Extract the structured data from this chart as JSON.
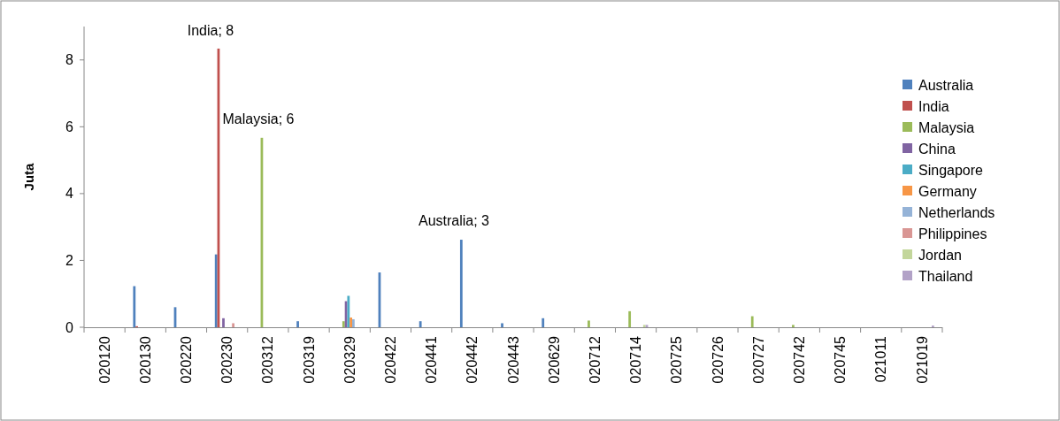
{
  "chart_data": {
    "type": "bar",
    "ylabel": "Juta",
    "categories": [
      "020120",
      "020130",
      "020220",
      "020230",
      "020312",
      "020319",
      "020329",
      "020422",
      "020441",
      "020442",
      "020443",
      "020629",
      "020712",
      "020714",
      "020725",
      "020726",
      "020727",
      "020742",
      "020745",
      "021011",
      "021019"
    ],
    "series": [
      {
        "name": "Australia",
        "color": "#4f81bd",
        "values": [
          0,
          1.23,
          0.6,
          2.18,
          0,
          0.18,
          0,
          1.64,
          0.18,
          2.62,
          0.12,
          0.27,
          0,
          0,
          0,
          0,
          0,
          0,
          0,
          0,
          0
        ]
      },
      {
        "name": "India",
        "color": "#c0504d",
        "values": [
          0,
          0.03,
          0,
          8.34,
          0,
          0,
          0,
          0,
          0,
          0,
          0,
          0,
          0,
          0,
          0,
          0,
          0,
          0,
          0,
          0,
          0
        ]
      },
      {
        "name": "Malaysia",
        "color": "#9bbb59",
        "values": [
          0,
          0,
          0,
          0,
          5.67,
          0,
          0.18,
          0,
          0,
          0,
          0,
          0,
          0.2,
          0.48,
          0,
          0,
          0.33,
          0.07,
          0,
          0,
          0
        ]
      },
      {
        "name": "China",
        "color": "#8064a2",
        "values": [
          0,
          0,
          0,
          0.27,
          0,
          0,
          0.78,
          0,
          0,
          0,
          0,
          0,
          0,
          0,
          0,
          0,
          0,
          0,
          0,
          0,
          0
        ]
      },
      {
        "name": "Singapore",
        "color": "#4bacc6",
        "values": [
          0,
          0,
          0,
          0,
          0,
          0,
          0.94,
          0,
          0,
          0,
          0,
          0,
          0,
          0,
          0,
          0,
          0,
          0,
          0,
          0,
          0
        ]
      },
      {
        "name": "Germany",
        "color": "#f79646",
        "values": [
          0,
          0,
          0,
          0,
          0,
          0,
          0.29,
          0,
          0,
          0,
          0,
          0,
          0,
          0,
          0,
          0,
          0,
          0,
          0,
          0,
          0
        ]
      },
      {
        "name": "Netherlands",
        "color": "#95b3d7",
        "values": [
          0,
          0,
          0,
          0,
          0,
          0,
          0.24,
          0,
          0,
          0,
          0,
          0,
          0,
          0,
          0,
          0,
          0,
          0,
          0,
          0,
          0
        ]
      },
      {
        "name": "Philippines",
        "color": "#d99694",
        "values": [
          0,
          0,
          0,
          0.12,
          0,
          0,
          0,
          0,
          0,
          0,
          0,
          0,
          0,
          0,
          0,
          0,
          0,
          0,
          0,
          0,
          0
        ]
      },
      {
        "name": "Jordan",
        "color": "#c3d69b",
        "values": [
          0,
          0,
          0,
          0,
          0,
          0,
          0,
          0,
          0,
          0,
          0,
          0,
          0,
          0.07,
          0,
          0,
          0,
          0,
          0,
          0,
          0
        ]
      },
      {
        "name": "Thailand",
        "color": "#b2a2c7",
        "values": [
          0,
          0,
          0,
          0,
          0,
          0,
          0,
          0,
          0,
          0,
          0,
          0,
          0,
          0.07,
          0,
          0,
          0,
          0,
          0,
          0,
          0.05
        ]
      }
    ],
    "ylim": [
      0,
      9
    ],
    "yticks": [
      0,
      2,
      4,
      6,
      8
    ],
    "annotations": [
      "India; 8",
      "Malaysia; 6",
      "Australia; 3"
    ],
    "grid": false,
    "legend": "right"
  }
}
